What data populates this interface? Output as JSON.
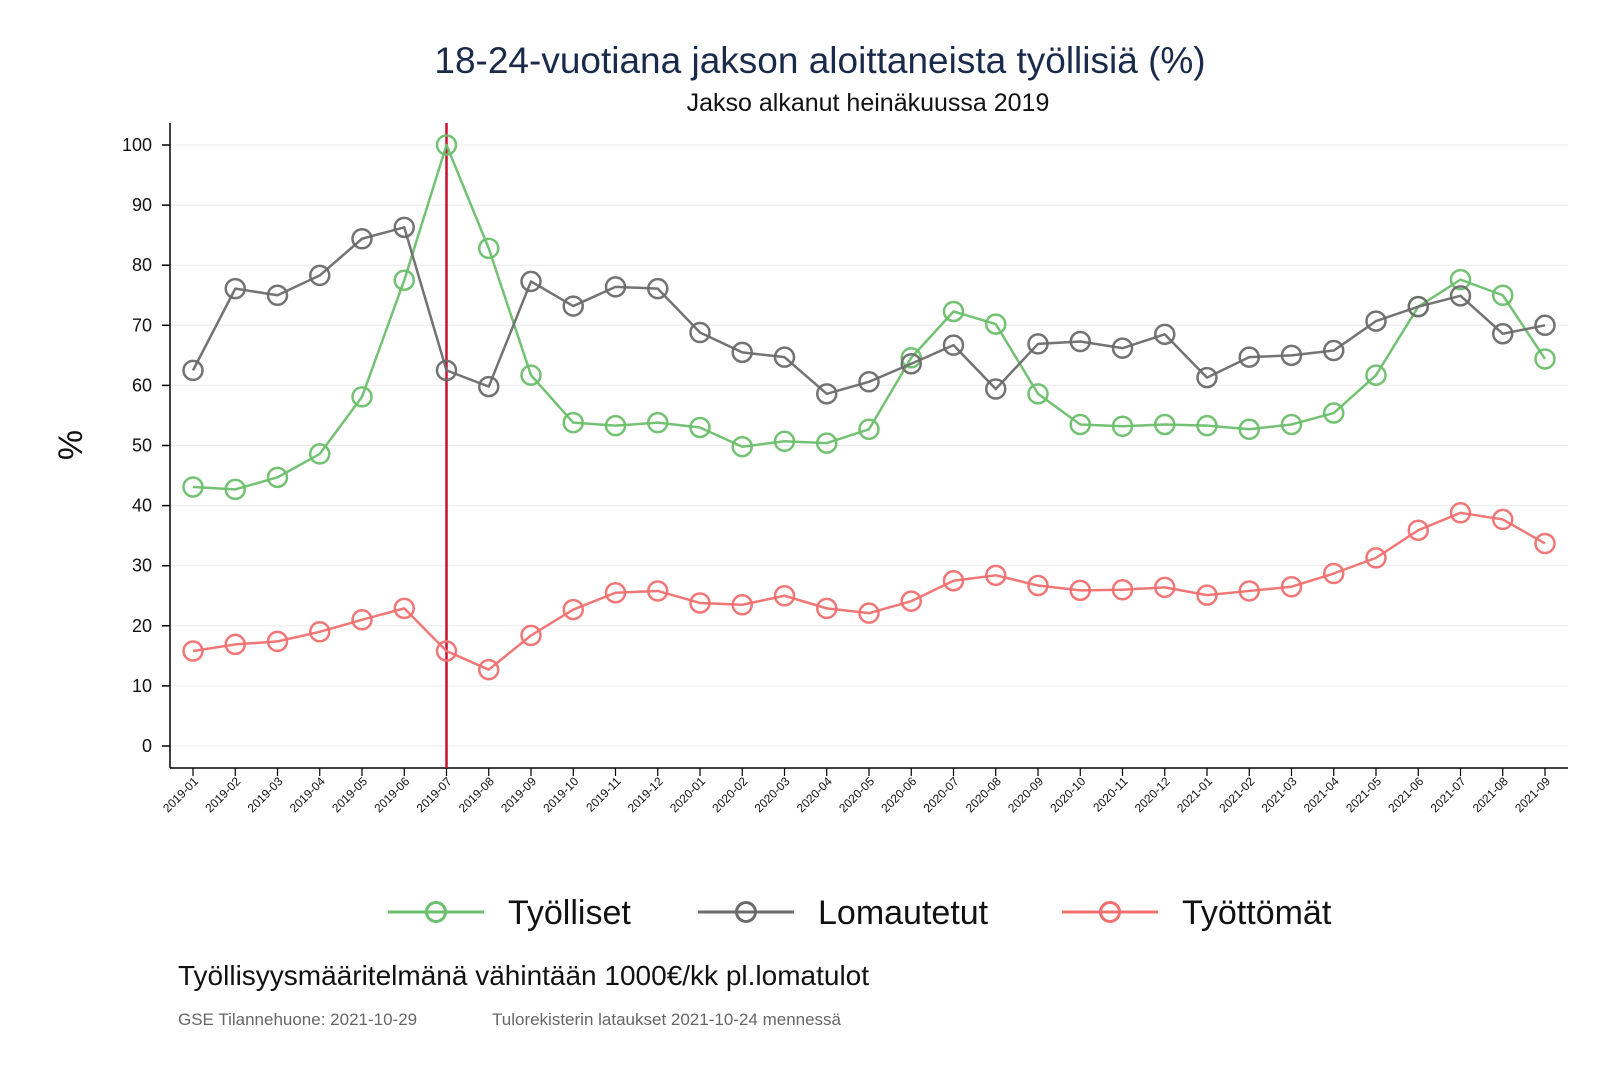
{
  "chart_data": {
    "type": "line",
    "title": "18-24-vuotiana jakson aloittaneista työllisiä (%)",
    "subtitle": "Jakso alkanut heinäkuussa 2019",
    "ylabel": "%",
    "xlabel": "",
    "ylim": [
      0,
      100
    ],
    "yticks": [
      0,
      10,
      20,
      30,
      40,
      50,
      60,
      70,
      80,
      90,
      100
    ],
    "grid": true,
    "legend_position": "bottom",
    "reference_line": {
      "x": "2019-07",
      "color": "#c8102e"
    },
    "x": [
      "2019-01",
      "2019-02",
      "2019-03",
      "2019-04",
      "2019-05",
      "2019-06",
      "2019-07",
      "2019-08",
      "2019-09",
      "2019-10",
      "2019-11",
      "2019-12",
      "2020-01",
      "2020-02",
      "2020-03",
      "2020-04",
      "2020-05",
      "2020-06",
      "2020-07",
      "2020-08",
      "2020-09",
      "2020-10",
      "2020-11",
      "2020-12",
      "2021-01",
      "2021-02",
      "2021-03",
      "2021-04",
      "2021-05",
      "2021-06",
      "2021-07",
      "2021-08",
      "2021-09"
    ],
    "series": [
      {
        "name": "Työlliset",
        "color": "#6cbf6c",
        "values": [
          43.1,
          42.7,
          44.7,
          48.6,
          58.1,
          77.5,
          100,
          82.8,
          61.7,
          53.8,
          53.3,
          53.8,
          53.0,
          49.8,
          50.7,
          50.4,
          52.7,
          64.6,
          72.3,
          70.2,
          58.6,
          53.5,
          53.2,
          53.5,
          53.3,
          52.7,
          53.5,
          55.4,
          61.7,
          73.1,
          77.6,
          75.0,
          64.4
        ]
      },
      {
        "name": "Lomautetut",
        "color": "#6b6b6b",
        "values": [
          62.5,
          76.1,
          75.0,
          78.3,
          84.4,
          86.3,
          62.5,
          59.8,
          77.3,
          73.2,
          76.4,
          76.1,
          68.8,
          65.5,
          64.7,
          58.6,
          60.6,
          63.6,
          66.7,
          59.4,
          66.9,
          67.3,
          66.2,
          68.5,
          61.3,
          64.7,
          65.0,
          65.8,
          70.7,
          73.1,
          74.9,
          68.6,
          70.0
        ]
      },
      {
        "name": "Työttömät",
        "color": "#f07070",
        "values": [
          15.8,
          16.9,
          17.4,
          19.0,
          21.0,
          22.9,
          15.8,
          12.7,
          18.4,
          22.7,
          25.5,
          25.8,
          23.8,
          23.5,
          25.0,
          22.9,
          22.1,
          24.1,
          27.5,
          28.4,
          26.7,
          25.9,
          26.0,
          26.4,
          25.1,
          25.8,
          26.5,
          28.7,
          31.3,
          35.9,
          38.8,
          37.7,
          33.7
        ]
      }
    ]
  },
  "legend": [
    {
      "label": "Työlliset",
      "color": "#6cbf6c"
    },
    {
      "label": "Lomautetut",
      "color": "#6b6b6b"
    },
    {
      "label": "Työttömät",
      "color": "#f07070"
    }
  ],
  "footer": {
    "note": "Työllisyysmääritelmänä vähintään 1000€/kk pl.lomatulot",
    "source_date": "GSE Tilannehuone: 2021-10-29",
    "source_register": "Tulorekisterin lataukset 2021-10-24 mennessä"
  }
}
